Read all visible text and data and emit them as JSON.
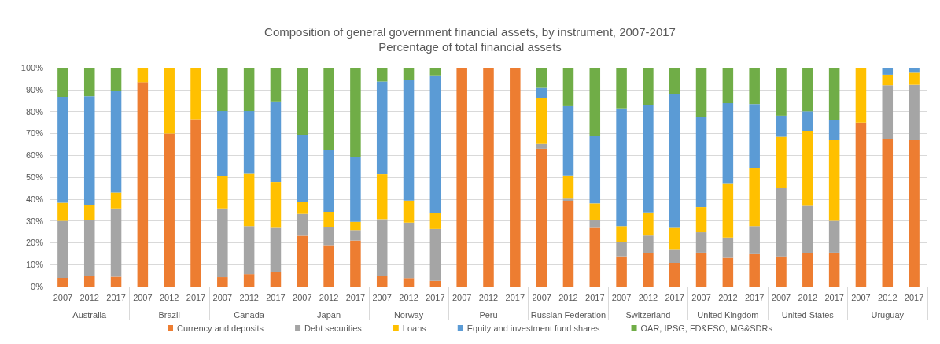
{
  "chart_data": {
    "type": "bar",
    "stacked": true,
    "title": "Composition of general government financial assets, by instrument, 2007-2017",
    "subtitle": "Percentage of total financial assets",
    "categories": [
      "2007",
      "2012",
      "2017",
      "2007",
      "2012",
      "2017",
      "2007",
      "2012",
      "2017",
      "2007",
      "2012",
      "2017",
      "2007",
      "2012",
      "2017",
      "2007",
      "2012",
      "2017",
      "2007",
      "2012",
      "2017",
      "2007",
      "2012",
      "2017",
      "2007",
      "2012",
      "2017",
      "2007",
      "2012",
      "2017",
      "2007",
      "2012",
      "2017"
    ],
    "annotations": [
      "Australia",
      "Brazil",
      "Canada",
      "Japan",
      "Norway",
      "Peru",
      "Russian Federation",
      "Switzerland",
      "United Kingdom",
      "United States",
      "Uruguay"
    ],
    "series": [
      {
        "name": "Currency and deposits",
        "color": "#ed7d31",
        "values": [
          4,
          5,
          4.5,
          93.4,
          70,
          76.4,
          4.3,
          5.7,
          6.7,
          23.2,
          18.9,
          21,
          5,
          3.9,
          2.6,
          100,
          100,
          100,
          63,
          39.2,
          26.8,
          13.8,
          15.2,
          10.8,
          15.5,
          13.1,
          14.8,
          13.8,
          15.3,
          15.5,
          74.9,
          67.6,
          66.9
        ]
      },
      {
        "name": "Debt securities",
        "color": "#a5a5a5",
        "values": [
          26,
          25.5,
          31.2,
          0,
          0,
          0,
          31.4,
          21.9,
          20.1,
          10,
          8.3,
          4.8,
          25.8,
          25.3,
          23.7,
          0,
          0,
          0,
          2.2,
          1,
          3.7,
          6.5,
          8.1,
          6.3,
          9.3,
          9.3,
          12.8,
          31.2,
          21.6,
          14.5,
          0,
          24.4,
          25.3
        ]
      },
      {
        "name": "Loans",
        "color": "#ffc000",
        "values": [
          8.3,
          6.8,
          7.3,
          6.6,
          30,
          23.6,
          14.9,
          24,
          21,
          5.6,
          7,
          3.8,
          20.6,
          10.1,
          7.3,
          0,
          0,
          0,
          20.9,
          10.6,
          7.5,
          7.3,
          10.6,
          9.7,
          11.5,
          24.5,
          26.6,
          23.5,
          34.3,
          36.9,
          25.1,
          4.8,
          5.5
        ]
      },
      {
        "name": "Equity and investment fund shares",
        "color": "#5b9bd5",
        "values": [
          48.4,
          49.7,
          46.3,
          0,
          0,
          0,
          29.6,
          28.6,
          36.8,
          30.4,
          28.4,
          29.5,
          42.3,
          55.1,
          62.9,
          0,
          0,
          0,
          4.7,
          31.6,
          30.7,
          53.8,
          49.2,
          61.1,
          41.1,
          36.9,
          29.2,
          9.6,
          8.9,
          9,
          0,
          3.2,
          2.3
        ]
      },
      {
        "name": "OAR, IPSG, FD&ESO, MG&SDRs",
        "color": "#70ad47",
        "values": [
          13.3,
          13,
          10.7,
          0,
          0,
          0,
          19.8,
          19.8,
          15.4,
          30.8,
          37.4,
          40.9,
          6.3,
          5.6,
          3.5,
          0,
          0,
          0,
          9.2,
          17.6,
          31.3,
          18.6,
          16.9,
          12.1,
          22.6,
          16.2,
          16.6,
          21.9,
          19.9,
          24.1,
          0,
          0,
          0
        ]
      }
    ],
    "ylim": [
      0,
      100
    ],
    "yticks": [
      {
        "value": 0,
        "label": "0%"
      },
      {
        "value": 10,
        "label": "10%"
      },
      {
        "value": 20,
        "label": "20%"
      },
      {
        "value": 30,
        "label": "30%"
      },
      {
        "value": 40,
        "label": "40%"
      },
      {
        "value": 50,
        "label": "50%"
      },
      {
        "value": 60,
        "label": "60%"
      },
      {
        "value": 70,
        "label": "70%"
      },
      {
        "value": 80,
        "label": "80%"
      },
      {
        "value": 90,
        "label": "90%"
      },
      {
        "value": 100,
        "label": "100%"
      }
    ],
    "grid": "y",
    "legend": "bottom"
  }
}
